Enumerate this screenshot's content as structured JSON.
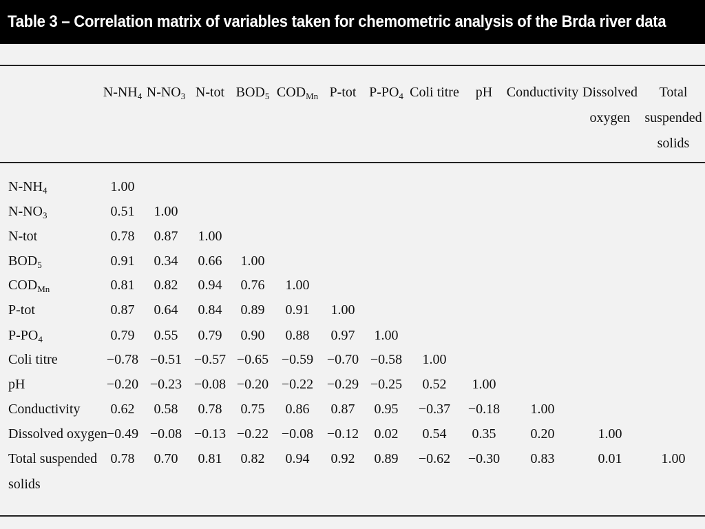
{
  "title": "Table 3 – Correlation matrix of variables taken for chemometric analysis of the Brda river data",
  "columns": [
    {
      "base": "N-NH",
      "sub": "4"
    },
    {
      "base": "N-NO",
      "sub": "3"
    },
    {
      "base": "N-tot",
      "sub": ""
    },
    {
      "base": "BOD",
      "sub": "5"
    },
    {
      "base": "COD",
      "sub": "Mn"
    },
    {
      "base": "P-tot",
      "sub": ""
    },
    {
      "base": "P-PO",
      "sub": "4"
    },
    {
      "base": "Coli titre",
      "sub": ""
    },
    {
      "base": "pH",
      "sub": ""
    },
    {
      "base": "Conductivity",
      "sub": ""
    },
    {
      "base": "Dissolved\noxygen",
      "sub": ""
    },
    {
      "base": "Total\nsuspended\nsolids",
      "sub": ""
    }
  ],
  "rows": [
    {
      "base": "N-NH",
      "sub": "4",
      "values": [
        "1.00"
      ]
    },
    {
      "base": "N-NO",
      "sub": "3",
      "values": [
        "0.51",
        "1.00"
      ]
    },
    {
      "base": "N-tot",
      "sub": "",
      "values": [
        "0.78",
        "0.87",
        "1.00"
      ]
    },
    {
      "base": "BOD",
      "sub": "5",
      "values": [
        "0.91",
        "0.34",
        "0.66",
        "1.00"
      ]
    },
    {
      "base": "COD",
      "sub": "Mn",
      "values": [
        "0.81",
        "0.82",
        "0.94",
        "0.76",
        "1.00"
      ]
    },
    {
      "base": "P-tot",
      "sub": "",
      "values": [
        "0.87",
        "0.64",
        "0.84",
        "0.89",
        "0.91",
        "1.00"
      ]
    },
    {
      "base": "P-PO",
      "sub": "4",
      "values": [
        "0.79",
        "0.55",
        "0.79",
        "0.90",
        "0.88",
        "0.97",
        "1.00"
      ]
    },
    {
      "base": "Coli titre",
      "sub": "",
      "values": [
        "−0.78",
        "−0.51",
        "−0.57",
        "−0.65",
        "−0.59",
        "−0.70",
        "−0.58",
        "1.00"
      ]
    },
    {
      "base": "pH",
      "sub": "",
      "values": [
        "−0.20",
        "−0.23",
        "−0.08",
        "−0.20",
        "−0.22",
        "−0.29",
        "−0.25",
        "0.52",
        "1.00"
      ]
    },
    {
      "base": "Conductivity",
      "sub": "",
      "values": [
        "0.62",
        "0.58",
        "0.78",
        "0.75",
        "0.86",
        "0.87",
        "0.95",
        "−0.37",
        "−0.18",
        "1.00"
      ]
    },
    {
      "base": "Dissolved oxygen",
      "sub": "",
      "values": [
        "−0.49",
        "−0.08",
        "−0.13",
        "−0.22",
        "−0.08",
        "−0.12",
        "0.02",
        "0.54",
        "0.35",
        "0.20",
        "1.00"
      ]
    },
    {
      "base": "Total suspended\nsolids",
      "sub": "",
      "values": [
        "0.78",
        "0.70",
        "0.81",
        "0.82",
        "0.94",
        "0.92",
        "0.89",
        "−0.62",
        "−0.30",
        "0.83",
        "0.01",
        "1.00"
      ]
    }
  ]
}
